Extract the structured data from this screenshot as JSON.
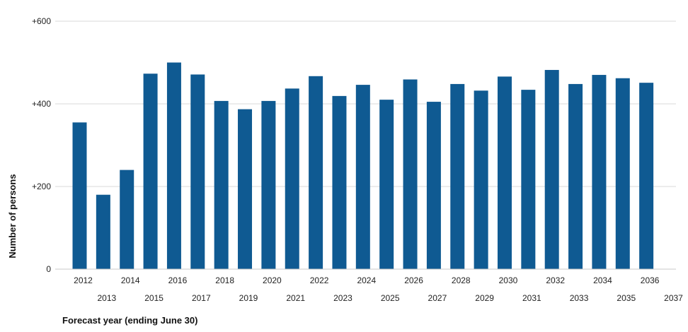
{
  "chart_data": {
    "type": "bar",
    "title": "",
    "xlabel": "Forecast year (ending June 30)",
    "ylabel": "Number of persons",
    "ylim": [
      0,
      600
    ],
    "yticks": [
      0,
      200,
      400,
      600
    ],
    "ytick_labels": [
      "0",
      "+200",
      "+400",
      "+600"
    ],
    "grid": true,
    "legend": "none",
    "bar_color": "#0f5a92",
    "categories": [
      "2012",
      "2013",
      "2014",
      "2015",
      "2016",
      "2017",
      "2018",
      "2019",
      "2020",
      "2021",
      "2022",
      "2023",
      "2024",
      "2025",
      "2026",
      "2027",
      "2028",
      "2029",
      "2030",
      "2031",
      "2032",
      "2033",
      "2034",
      "2035",
      "2036"
    ],
    "xtick_labels": [
      "2012",
      "2013",
      "2014",
      "2015",
      "2016",
      "2017",
      "2018",
      "2019",
      "2020",
      "2021",
      "2022",
      "2023",
      "2024",
      "2025",
      "2026",
      "2027",
      "2028",
      "2029",
      "2030",
      "2031",
      "2032",
      "2033",
      "2034",
      "2035",
      "2036",
      "2037"
    ],
    "values": [
      355,
      180,
      240,
      473,
      500,
      471,
      407,
      387,
      407,
      437,
      467,
      419,
      446,
      410,
      459,
      405,
      448,
      432,
      466,
      434,
      482,
      448,
      470,
      462,
      451
    ]
  }
}
